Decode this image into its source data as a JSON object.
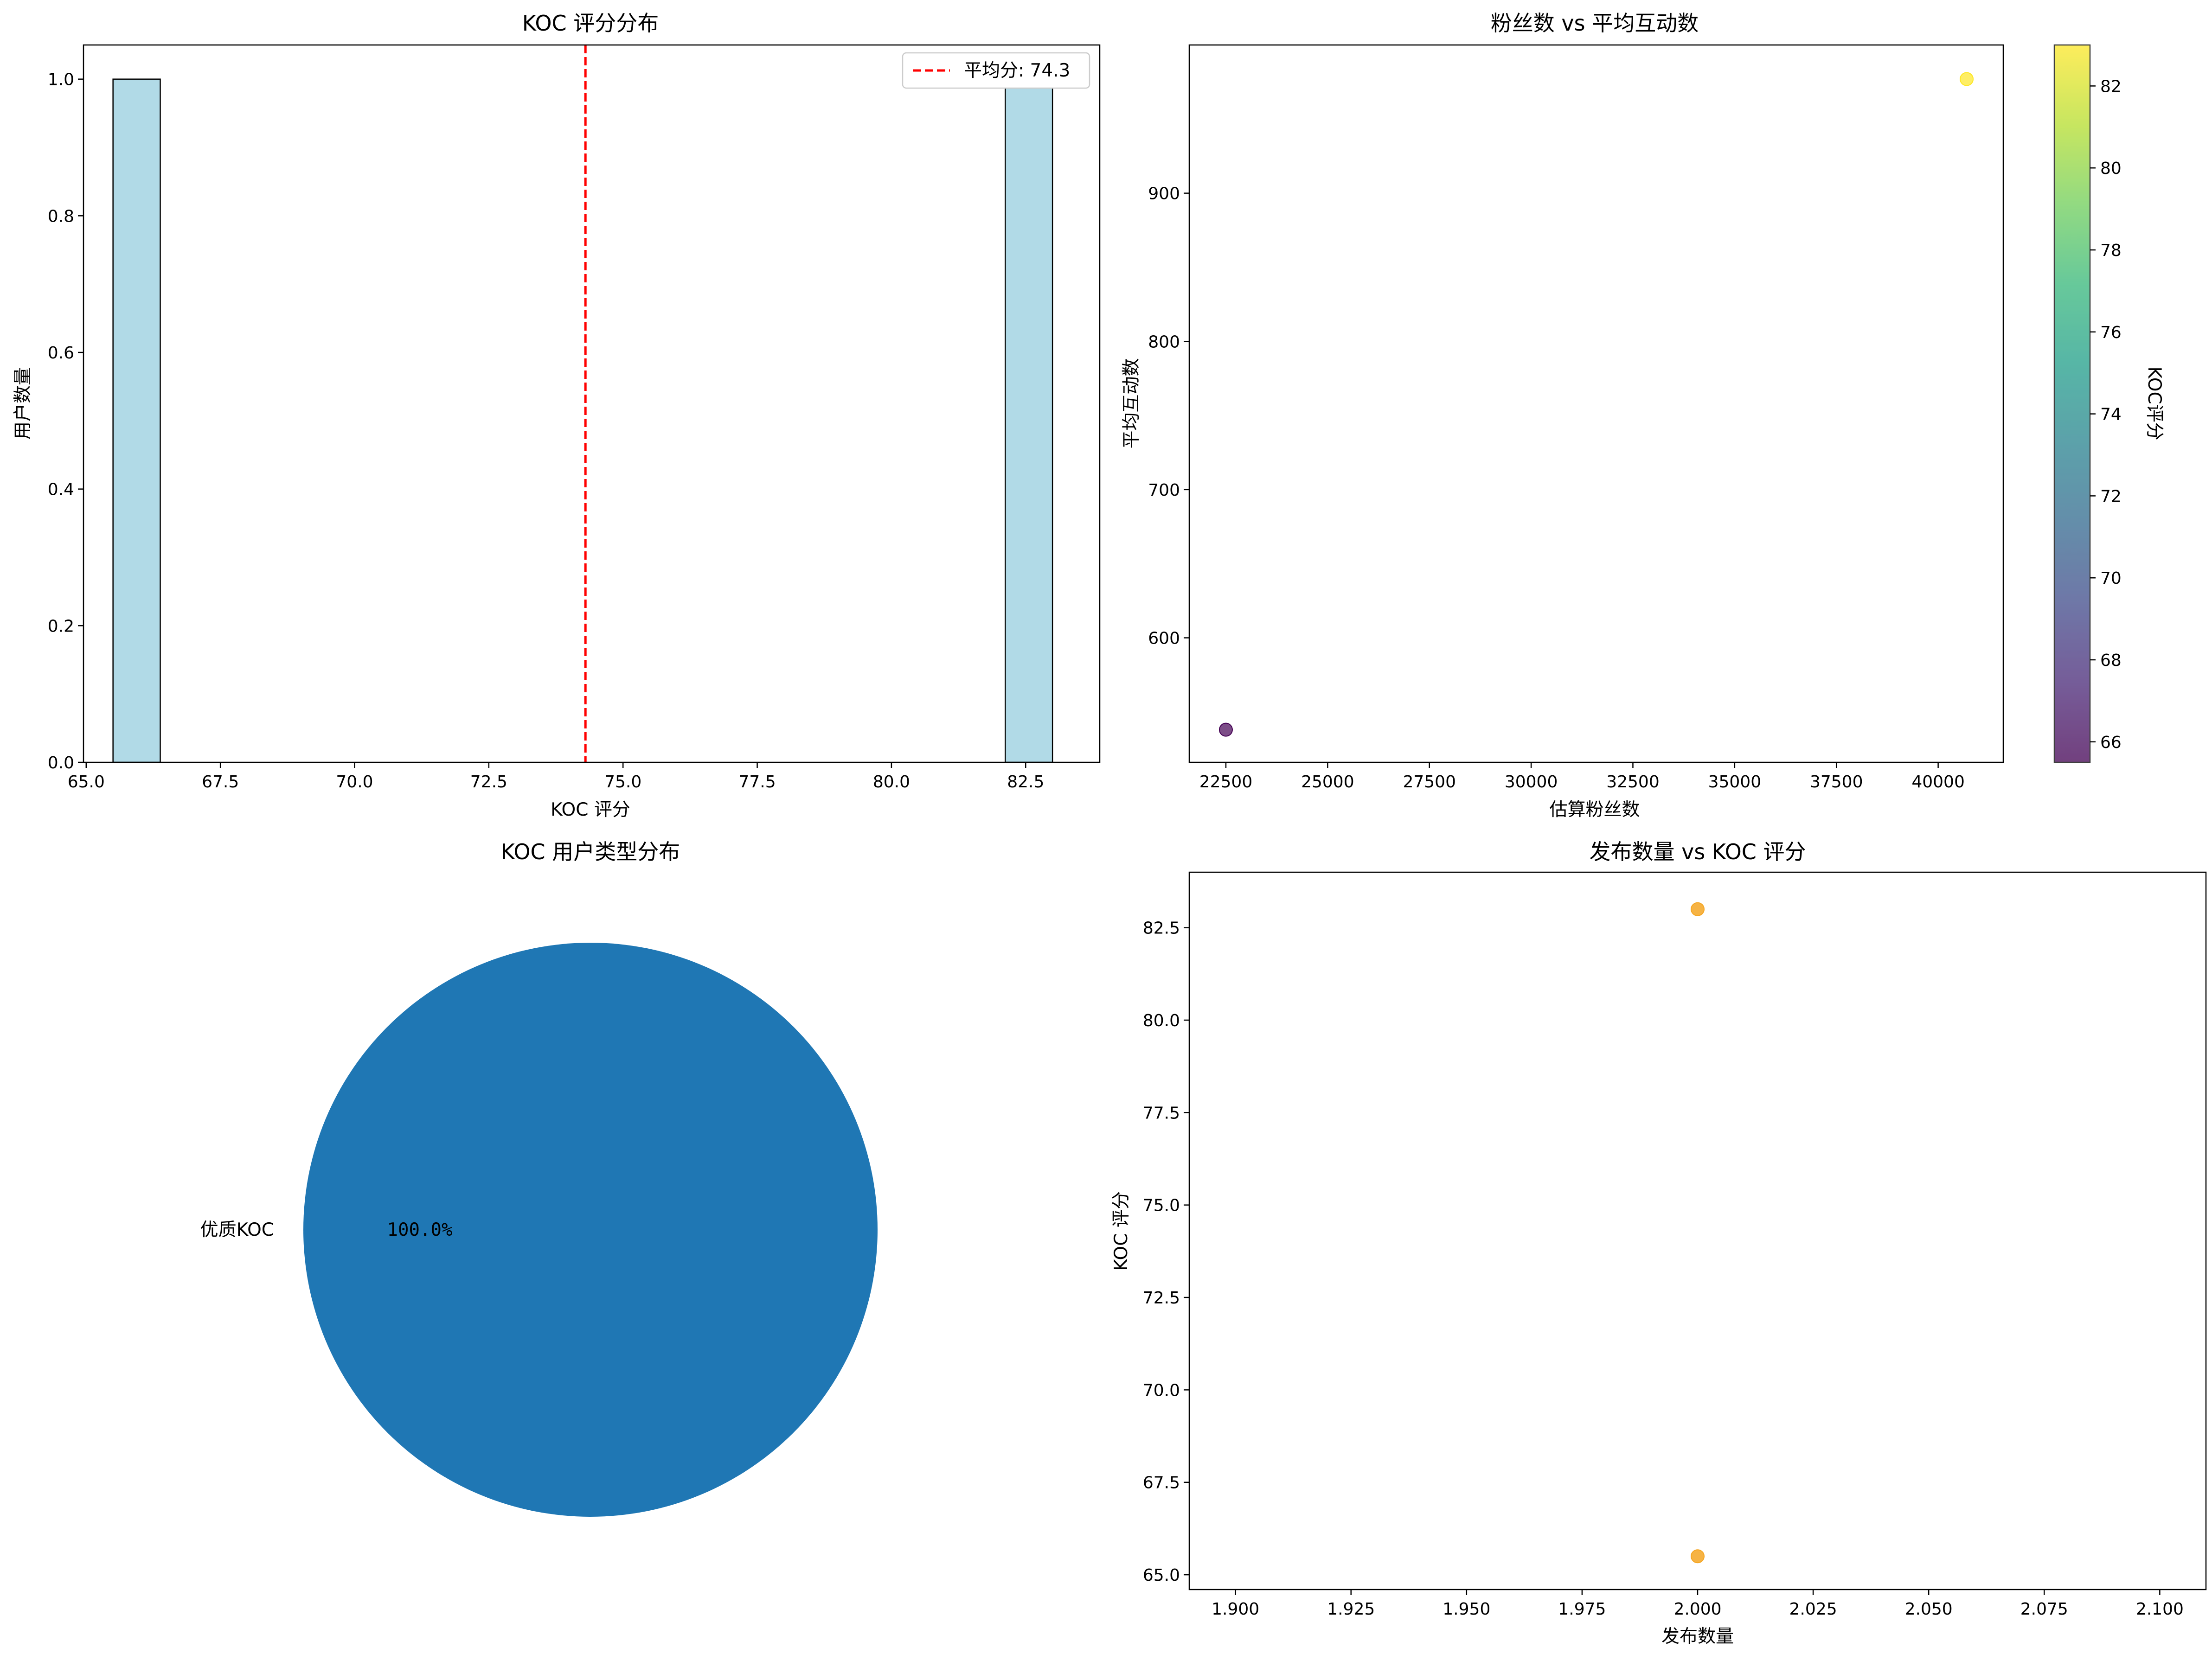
{
  "colors": {
    "hist_fill": "#add8e6",
    "hist_edge": "#000000",
    "mean_line": "#ff0000",
    "pie": "#1f77b4",
    "scatter_orange": "#f5a623",
    "viridis": [
      "#440154",
      "#482777",
      "#3f4a8a",
      "#31688e",
      "#26828e",
      "#1f9e89",
      "#35b779",
      "#6ece58",
      "#b5de2b",
      "#fde725"
    ]
  },
  "chart_data": [
    {
      "type": "bar",
      "title": "KOC 评分分布",
      "xlabel": "KOC 评分",
      "ylabel": "用户数量",
      "xlim": [
        64.95,
        83.88
      ],
      "ylim": [
        0,
        1.05
      ],
      "xticks": [
        "65.0",
        "67.5",
        "70.0",
        "72.5",
        "75.0",
        "77.5",
        "80.0",
        "82.5"
      ],
      "yticks": [
        "0.0",
        "0.2",
        "0.4",
        "0.6",
        "0.8",
        "1.0"
      ],
      "bins": [
        {
          "x0": 65.5,
          "x1": 66.38,
          "count": 1
        },
        {
          "x0": 82.12,
          "x1": 83.0,
          "count": 1
        }
      ],
      "mean_line": {
        "value": 74.3,
        "label": "平均分: 74.3"
      },
      "legend": "top-right"
    },
    {
      "type": "scatter",
      "title": "粉丝数 vs 平均互动数",
      "xlabel": "估算粉丝数",
      "ylabel": "平均互动数",
      "xlim": [
        21600,
        41600
      ],
      "ylim": [
        516,
        1000
      ],
      "xticks": [
        "22500",
        "25000",
        "27500",
        "30000",
        "32500",
        "35000",
        "37500",
        "40000"
      ],
      "yticks": [
        "600",
        "700",
        "800",
        "900"
      ],
      "points": [
        {
          "x": 22500,
          "y": 538,
          "score": 65.5
        },
        {
          "x": 40700,
          "y": 977,
          "score": 83.0
        }
      ],
      "colorbar": {
        "label": "KOC评分",
        "range": [
          65.5,
          83.0
        ],
        "ticks": [
          "66",
          "68",
          "70",
          "72",
          "74",
          "76",
          "78",
          "80",
          "82"
        ]
      }
    },
    {
      "type": "pie",
      "title": "KOC 用户类型分布",
      "slices": [
        {
          "label": "优质KOC",
          "value": 100.0,
          "pct_label": "100.0%"
        }
      ]
    },
    {
      "type": "scatter",
      "title": "发布数量 vs KOC 评分",
      "xlabel": "发布数量",
      "ylabel": "KOC 评分",
      "xlim": [
        1.89,
        2.11
      ],
      "ylim": [
        64.6,
        84.0
      ],
      "xticks": [
        "1.900",
        "1.925",
        "1.950",
        "1.975",
        "2.000",
        "2.025",
        "2.050",
        "2.075",
        "2.100"
      ],
      "yticks": [
        "65.0",
        "67.5",
        "70.0",
        "72.5",
        "75.0",
        "77.5",
        "80.0",
        "82.5"
      ],
      "points": [
        {
          "x": 2.0,
          "y": 83.0
        },
        {
          "x": 2.0,
          "y": 65.5
        }
      ]
    }
  ]
}
